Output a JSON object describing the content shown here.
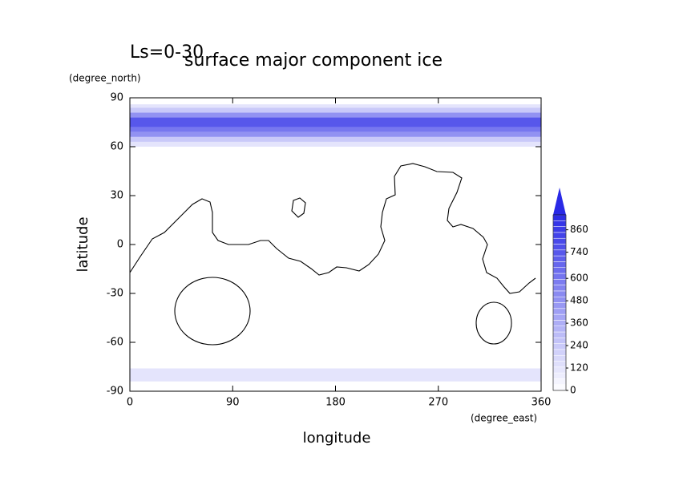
{
  "chart_data": {
    "type": "contour_map",
    "title": "surface major component ice",
    "subtitle": "Ls=0-30",
    "x_label": "longitude",
    "y_label": "latitude",
    "x_unit": "(degree_east)",
    "y_unit": "(degree_north)",
    "xlim": [
      0,
      360
    ],
    "xticks": [
      0,
      90,
      180,
      270,
      360
    ],
    "ylim": [
      -90,
      90
    ],
    "yticks": [
      90,
      60,
      30,
      0,
      -30,
      -60,
      -90
    ],
    "colorbar_lim": [
      0,
      940
    ],
    "colorbar_ticks": [
      0,
      120,
      240,
      360,
      480,
      600,
      740,
      860
    ],
    "color": "#2a2ae6",
    "bands": [
      {
        "lat": [
          60,
          63
        ],
        "value": 120
      },
      {
        "lat": [
          63,
          66
        ],
        "value": 240
      },
      {
        "lat": [
          66,
          69
        ],
        "value": 480
      },
      {
        "lat": [
          69,
          72
        ],
        "value": 600
      },
      {
        "lat": [
          72,
          78
        ],
        "value": 740
      },
      {
        "lat": [
          78,
          81
        ],
        "value": 480
      },
      {
        "lat": [
          81,
          84
        ],
        "value": 240
      },
      {
        "lat": [
          84,
          86
        ],
        "value": 120
      },
      {
        "lat": [
          -84,
          -76
        ],
        "value": 120
      }
    ]
  }
}
